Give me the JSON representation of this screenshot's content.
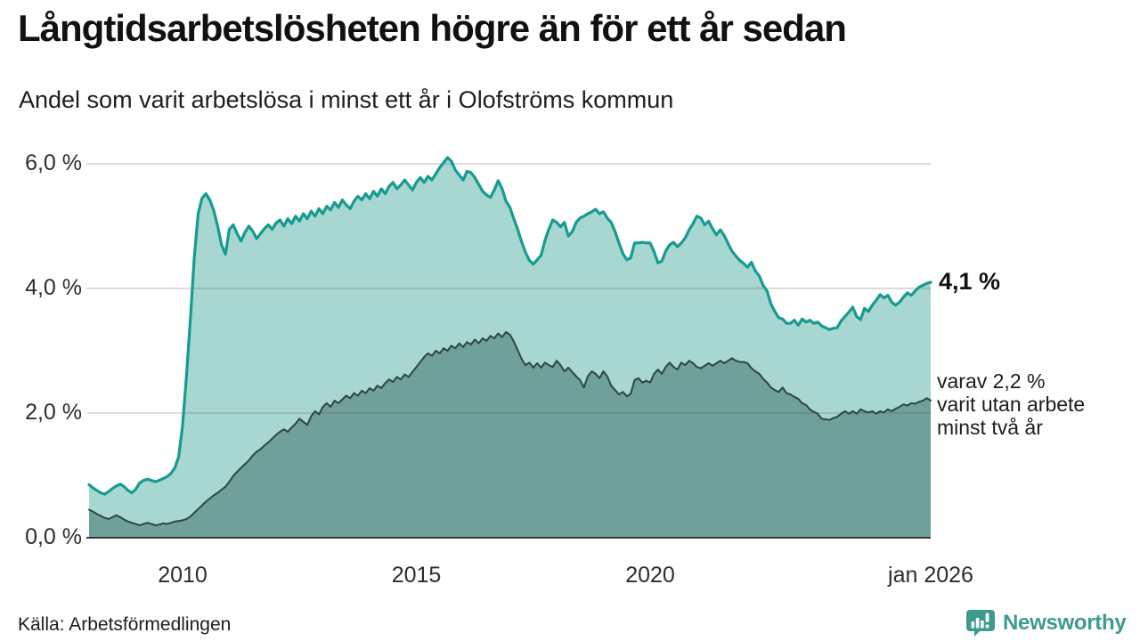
{
  "header": {
    "title": "Långtidsarbetslösheten högre än för ett år sedan",
    "subtitle": "Andel som varit arbetslösa i minst ett år i Olofströms kommun"
  },
  "annotations": {
    "latest_one_year": "4,1 %",
    "two_year_note_lines": [
      "varav 2,2 %",
      "varit utan arbete",
      "minst två år"
    ]
  },
  "footer": {
    "source": "Källa: Arbetsförmedlingen",
    "brand": "Newsworthy"
  },
  "colors": {
    "one_year_line": "#169b90",
    "one_year_fill": "#a7d7d0",
    "two_year_line": "#2f463f",
    "two_year_fill": "#6fa099",
    "grid": "rgba(90,90,90,0.28)",
    "axis": "#3a3a3a",
    "brand": "#3d9a8f",
    "title_text": "#111111"
  },
  "chart_data": {
    "type": "area",
    "title": "Långtidsarbetslösheten högre än för ett år sedan",
    "subtitle": "Andel som varit arbetslösa i minst ett år i Olofströms kommun",
    "x_unit": "month",
    "x_start": "2008-01",
    "x_end": "2026-01",
    "ylim": [
      0,
      6.3
    ],
    "grid": true,
    "legend": "inline-annotations",
    "y_ticks": [
      {
        "value": 0,
        "label": "0,0 %"
      },
      {
        "value": 2,
        "label": "2,0 %"
      },
      {
        "value": 4,
        "label": "4,0 %"
      },
      {
        "value": 6,
        "label": "6,0 %"
      }
    ],
    "x_ticks": [
      {
        "year": 2010,
        "label": "2010"
      },
      {
        "year": 2015,
        "label": "2015"
      },
      {
        "year": 2020,
        "label": "2020"
      },
      {
        "year": 2026,
        "label": "jan 2026"
      }
    ],
    "series": [
      {
        "name": "arbetslösa minst ett år",
        "latest_label": "4,1 %",
        "latest_value": 4.1,
        "values": [
          0.85,
          0.8,
          0.76,
          0.72,
          0.7,
          0.74,
          0.79,
          0.83,
          0.86,
          0.82,
          0.76,
          0.72,
          0.78,
          0.88,
          0.92,
          0.94,
          0.92,
          0.9,
          0.92,
          0.95,
          0.98,
          1.03,
          1.12,
          1.3,
          1.8,
          2.6,
          3.5,
          4.5,
          5.2,
          5.45,
          5.52,
          5.42,
          5.25,
          5.0,
          4.7,
          4.55,
          4.95,
          5.02,
          4.88,
          4.76,
          4.9,
          5.0,
          4.92,
          4.8,
          4.88,
          4.96,
          5.02,
          4.95,
          5.05,
          5.1,
          5.0,
          5.12,
          5.04,
          5.16,
          5.08,
          5.2,
          5.12,
          5.24,
          5.16,
          5.28,
          5.2,
          5.32,
          5.26,
          5.38,
          5.3,
          5.42,
          5.34,
          5.28,
          5.4,
          5.48,
          5.42,
          5.52,
          5.44,
          5.56,
          5.48,
          5.6,
          5.52,
          5.64,
          5.7,
          5.6,
          5.66,
          5.74,
          5.66,
          5.58,
          5.7,
          5.78,
          5.7,
          5.8,
          5.74,
          5.84,
          5.94,
          6.02,
          6.1,
          6.04,
          5.9,
          5.82,
          5.74,
          5.88,
          5.86,
          5.78,
          5.67,
          5.56,
          5.5,
          5.46,
          5.58,
          5.73,
          5.6,
          5.4,
          5.3,
          5.12,
          4.95,
          4.75,
          4.58,
          4.45,
          4.39,
          4.46,
          4.53,
          4.77,
          4.95,
          5.1,
          5.06,
          4.99,
          5.06,
          4.84,
          4.91,
          5.06,
          5.13,
          5.16,
          5.2,
          5.23,
          5.27,
          5.2,
          5.23,
          5.13,
          5.06,
          4.91,
          4.73,
          4.56,
          4.46,
          4.49,
          4.73,
          4.73,
          4.74,
          4.73,
          4.73,
          4.59,
          4.41,
          4.44,
          4.6,
          4.7,
          4.74,
          4.67,
          4.73,
          4.81,
          4.94,
          5.04,
          5.16,
          5.13,
          5.02,
          5.08,
          4.96,
          4.86,
          4.94,
          4.85,
          4.72,
          4.6,
          4.52,
          4.45,
          4.4,
          4.34,
          4.42,
          4.28,
          4.2,
          4.05,
          3.96,
          3.75,
          3.63,
          3.53,
          3.51,
          3.44,
          3.44,
          3.49,
          3.41,
          3.51,
          3.46,
          3.49,
          3.44,
          3.46,
          3.4,
          3.37,
          3.34,
          3.36,
          3.37,
          3.48,
          3.55,
          3.62,
          3.7,
          3.55,
          3.5,
          3.68,
          3.63,
          3.73,
          3.81,
          3.9,
          3.85,
          3.89,
          3.78,
          3.73,
          3.78,
          3.86,
          3.93,
          3.89,
          3.96,
          4.02,
          4.05,
          4.08,
          4.1
        ]
      },
      {
        "name": "arbetslösa minst två år",
        "latest_label": "2,2 %",
        "latest_value": 2.2,
        "values": [
          0.45,
          0.42,
          0.38,
          0.35,
          0.32,
          0.3,
          0.33,
          0.36,
          0.33,
          0.29,
          0.26,
          0.24,
          0.22,
          0.2,
          0.22,
          0.24,
          0.22,
          0.2,
          0.21,
          0.23,
          0.22,
          0.24,
          0.26,
          0.27,
          0.28,
          0.3,
          0.34,
          0.4,
          0.46,
          0.52,
          0.58,
          0.63,
          0.68,
          0.72,
          0.77,
          0.82,
          0.9,
          0.99,
          1.06,
          1.12,
          1.18,
          1.24,
          1.32,
          1.38,
          1.42,
          1.48,
          1.53,
          1.59,
          1.65,
          1.7,
          1.74,
          1.7,
          1.77,
          1.83,
          1.91,
          1.86,
          1.81,
          1.95,
          2.03,
          1.98,
          2.1,
          2.16,
          2.1,
          2.2,
          2.16,
          2.22,
          2.28,
          2.24,
          2.32,
          2.28,
          2.36,
          2.32,
          2.4,
          2.36,
          2.44,
          2.4,
          2.48,
          2.54,
          2.5,
          2.58,
          2.54,
          2.62,
          2.58,
          2.66,
          2.74,
          2.82,
          2.9,
          2.96,
          2.92,
          3.0,
          2.96,
          3.04,
          3.0,
          3.08,
          3.04,
          3.12,
          3.06,
          3.14,
          3.1,
          3.18,
          3.12,
          3.2,
          3.16,
          3.24,
          3.2,
          3.28,
          3.22,
          3.3,
          3.26,
          3.15,
          3.01,
          2.87,
          2.77,
          2.81,
          2.73,
          2.8,
          2.73,
          2.81,
          2.77,
          2.74,
          2.84,
          2.77,
          2.67,
          2.73,
          2.66,
          2.59,
          2.53,
          2.41,
          2.59,
          2.67,
          2.63,
          2.56,
          2.67,
          2.59,
          2.44,
          2.37,
          2.3,
          2.34,
          2.27,
          2.31,
          2.53,
          2.56,
          2.49,
          2.52,
          2.49,
          2.63,
          2.7,
          2.63,
          2.74,
          2.81,
          2.74,
          2.7,
          2.81,
          2.77,
          2.84,
          2.8,
          2.74,
          2.72,
          2.76,
          2.8,
          2.76,
          2.8,
          2.84,
          2.8,
          2.84,
          2.88,
          2.84,
          2.82,
          2.82,
          2.8,
          2.72,
          2.67,
          2.63,
          2.55,
          2.49,
          2.41,
          2.37,
          2.34,
          2.41,
          2.32,
          2.3,
          2.26,
          2.23,
          2.16,
          2.13,
          2.06,
          2.02,
          1.99,
          1.91,
          1.9,
          1.89,
          1.92,
          1.94,
          1.99,
          2.03,
          1.99,
          2.03,
          1.99,
          2.06,
          2.03,
          2.01,
          2.03,
          1.99,
          2.03,
          2.01,
          2.06,
          2.03,
          2.07,
          2.1,
          2.14,
          2.12,
          2.16,
          2.15,
          2.18,
          2.2,
          2.24,
          2.2
        ]
      }
    ]
  }
}
